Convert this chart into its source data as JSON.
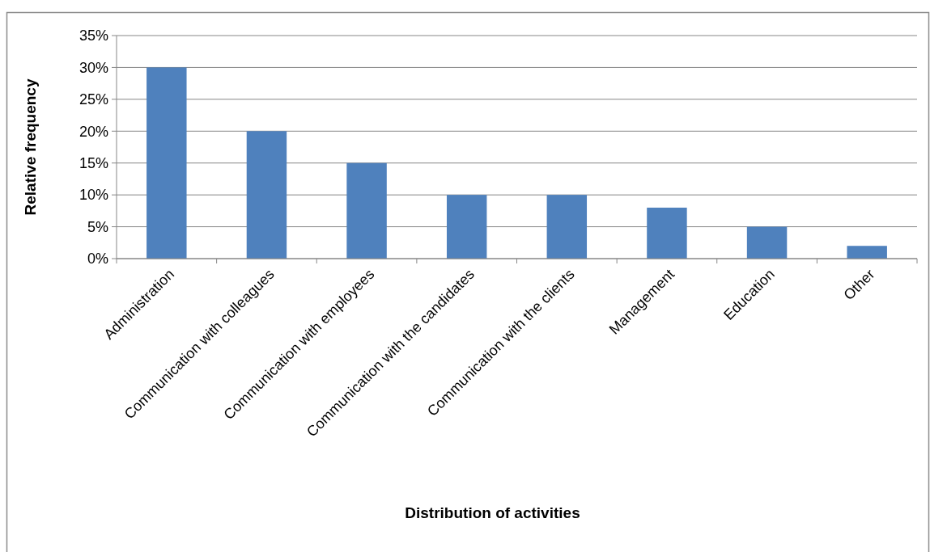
{
  "chart_data": {
    "type": "bar",
    "xlabel": "Distribution of activities",
    "ylabel": "Relative frequency",
    "categories": [
      "Administration",
      "Communication with colleagues",
      "Communication with employees",
      "Communication with the candidates",
      "Communication with the clients",
      "Management",
      "Education",
      "Other"
    ],
    "values": [
      30,
      20,
      15,
      10,
      10,
      8,
      5,
      2
    ],
    "color": "#4f81bd",
    "ylim": [
      0,
      35
    ],
    "yticks": [
      {
        "value": 0,
        "label": "0%"
      },
      {
        "value": 5,
        "label": "5%"
      },
      {
        "value": 10,
        "label": "10%"
      },
      {
        "value": 15,
        "label": "15%"
      },
      {
        "value": 20,
        "label": "20%"
      },
      {
        "value": 25,
        "label": "25%"
      },
      {
        "value": 30,
        "label": "30%"
      },
      {
        "value": 35,
        "label": "35%"
      }
    ],
    "grid": "y"
  }
}
